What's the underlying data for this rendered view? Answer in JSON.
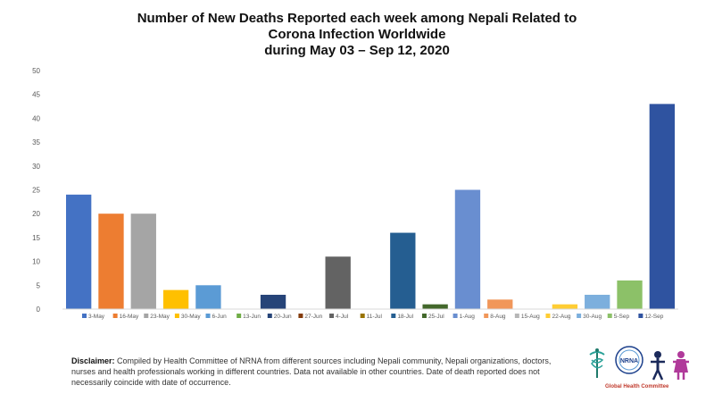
{
  "title_lines": [
    "Number of New Deaths Reported each week among Nepali Related to",
    "Corona Infection Worldwide",
    "during May 03 – Sep 12, 2020"
  ],
  "chart_data": {
    "type": "bar",
    "title": "Number of New Deaths Reported each week among Nepali Related to Corona Infection Worldwide during May 03 – Sep 12, 2020",
    "categories": [
      "3-May",
      "16-May",
      "23-May",
      "30-May",
      "6-Jun",
      "13-Jun",
      "20-Jun",
      "27-Jun",
      "4-Jul",
      "11-Jul",
      "18-Jul",
      "25-Jul",
      "1-Aug",
      "8-Aug",
      "15-Aug",
      "22-Aug",
      "30-Aug",
      "5-Sep",
      "12-Sep"
    ],
    "values": [
      24,
      20,
      20,
      4,
      5,
      0,
      3,
      0,
      11,
      0,
      16,
      1,
      25,
      2,
      0,
      1,
      3,
      6,
      43
    ],
    "colors": [
      "#4472c4",
      "#ed7d31",
      "#a5a5a5",
      "#ffc000",
      "#5b9bd5",
      "#70ad47",
      "#264478",
      "#843c0c",
      "#636363",
      "#997300",
      "#255e91",
      "#43682b",
      "#698ed0",
      "#f1975a",
      "#b7b7b7",
      "#ffcd33",
      "#7cafdd",
      "#8cc168",
      "#2f53a0"
    ],
    "ylim": [
      0,
      50
    ],
    "yticks": [
      0,
      5,
      10,
      15,
      20,
      25,
      30,
      35,
      40,
      45,
      50
    ],
    "xlabel": "",
    "ylabel": "",
    "grid": false,
    "legend": "bottom"
  },
  "disclaimer": {
    "label": "Disclaimer:",
    "text": " Compiled by Health Committee of NRNA from different sources including Nepali community, Nepali organizations, doctors, nurses and health professionals working in different countries. Data not available in other countries. Date of death reported does not necessarily coincide with date of occurrence."
  },
  "logos": {
    "nrna_text": "NRNA",
    "committee_text": "Global Health Committee"
  }
}
